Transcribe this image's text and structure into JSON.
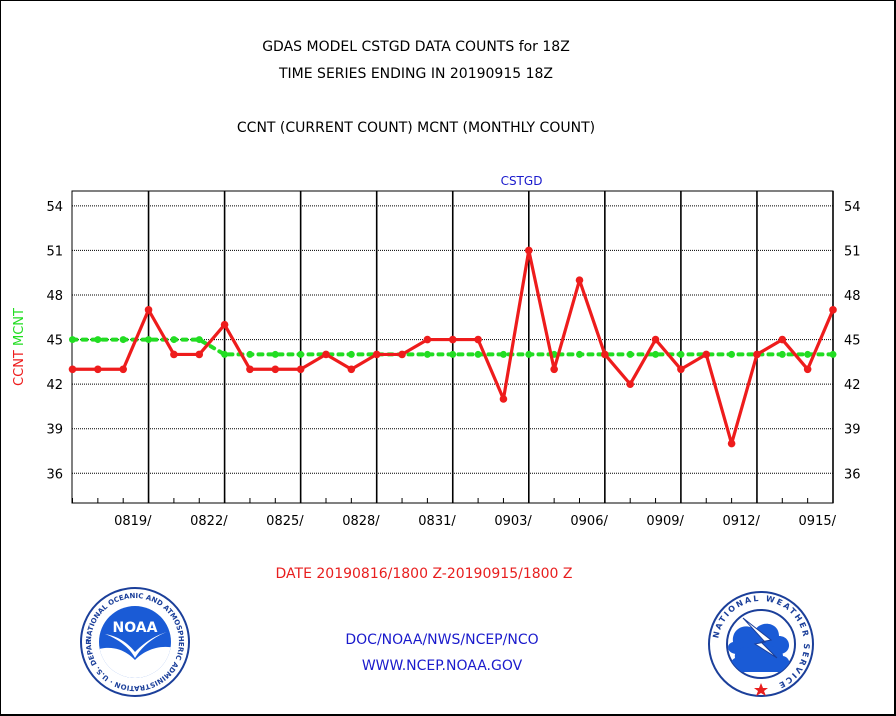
{
  "header": {
    "line1": "GDAS MODEL CSTGD DATA COUNTS for 18Z",
    "line2": "TIME SERIES ENDING IN 20190915 18Z",
    "line3": "CCNT (CURRENT COUNT) MCNT (MONTHLY COUNT)"
  },
  "footer": {
    "date_range": "DATE 20190816/1800 Z-20190915/1800 Z",
    "org_line": "DOC/NOAA/NWS/NCEP/NCO",
    "website": "WWW.NCEP.NOAA.GOV"
  },
  "logos": {
    "noaa_text": "NOAA",
    "noaa_ring": "NATIONAL OCEANIC AND ATMOSPHERIC ADMINISTRATION · U.S. DEPARTMENT OF COMMERCE ·",
    "nws_ring": "NATIONAL WEATHER SERVICE"
  },
  "colors": {
    "ccnt": "#ee1c1c",
    "mcnt": "#22dd22",
    "footer_text": "#1a1acc",
    "date_text": "#e81e1e"
  },
  "chart_data": {
    "type": "line",
    "title": "CSTGD",
    "ylabel_parts": [
      "CCNT",
      "MCNT"
    ],
    "ylim": [
      34,
      55
    ],
    "yticks": [
      36,
      39,
      42,
      45,
      48,
      51,
      54
    ],
    "xlim": [
      0,
      30
    ],
    "x_tick_labels": [
      {
        "x": 3,
        "label": "0819/"
      },
      {
        "x": 6,
        "label": "0822/"
      },
      {
        "x": 9,
        "label": "0825/"
      },
      {
        "x": 12,
        "label": "0828/"
      },
      {
        "x": 15,
        "label": "0831/"
      },
      {
        "x": 18,
        "label": "0903/"
      },
      {
        "x": 21,
        "label": "0906/"
      },
      {
        "x": 24,
        "label": "0909/"
      },
      {
        "x": 27,
        "label": "0912/"
      },
      {
        "x": 30,
        "label": "0915/"
      }
    ],
    "grid": true,
    "series": [
      {
        "name": "CCNT",
        "color": "#ee1c1c",
        "values": [
          43,
          43,
          43,
          47,
          44,
          44,
          46,
          43,
          43,
          43,
          44,
          43,
          44,
          44,
          45,
          45,
          45,
          41,
          51,
          43,
          49,
          44,
          42,
          45,
          43,
          44,
          38,
          44,
          45,
          43,
          47
        ]
      },
      {
        "name": "MCNT",
        "color": "#22dd22",
        "values": [
          45,
          45,
          45,
          45,
          45,
          45,
          44,
          44,
          44,
          44,
          44,
          44,
          44,
          44,
          44,
          44,
          44,
          44,
          44,
          44,
          44,
          44,
          44,
          44,
          44,
          44,
          44,
          44,
          44,
          44,
          44
        ]
      }
    ]
  }
}
